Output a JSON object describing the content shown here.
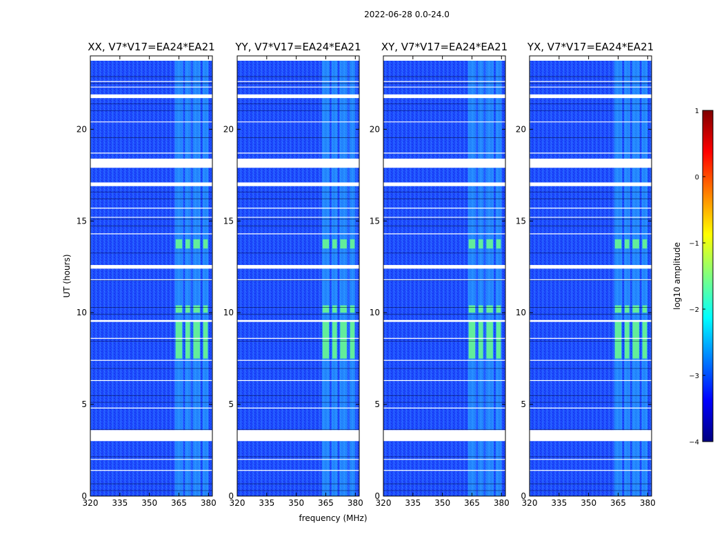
{
  "figure_title": "2022-06-28 0.0-24.0",
  "chart_data": {
    "type": "heatmap",
    "title": "2022-06-28 0.0-24.0",
    "xlabel": "frequency (MHz)",
    "ylabel": "UT (hours)",
    "xlim": [
      320,
      382
    ],
    "ylim": [
      0,
      24
    ],
    "x_ticks": [
      320,
      335,
      350,
      365,
      380
    ],
    "y_ticks": [
      0,
      5,
      10,
      15,
      20
    ],
    "colorbar": {
      "label": "log10 amplitude",
      "range": [
        -4,
        1
      ],
      "ticks": [
        1,
        0,
        -1,
        -2,
        -3,
        -4
      ],
      "colormap": "jet"
    },
    "panels": [
      {
        "title": "XX, V7*V17=EA24*EA21"
      },
      {
        "title": "YY, V7*V17=EA24*EA21"
      },
      {
        "title": "XY, V7*V17=EA24*EA21"
      },
      {
        "title": "YX, V7*V17=EA24*EA21"
      }
    ],
    "flagged_time_ranges_hours": [
      [
        3.0,
        3.6
      ],
      [
        12.4,
        12.6
      ],
      [
        17.9,
        18.4
      ],
      [
        21.7,
        21.9
      ],
      [
        9.5,
        9.6
      ],
      [
        16.9,
        17.1
      ]
    ],
    "rfi_frequency_bands_mhz": [
      [
        363,
        367
      ],
      [
        368,
        371
      ],
      [
        372,
        376
      ],
      [
        377,
        380
      ]
    ],
    "rfi_bright_time_ranges_hours": [
      [
        7.5,
        9.5
      ],
      [
        13.5,
        14.0
      ],
      [
        10.0,
        10.4
      ]
    ]
  }
}
